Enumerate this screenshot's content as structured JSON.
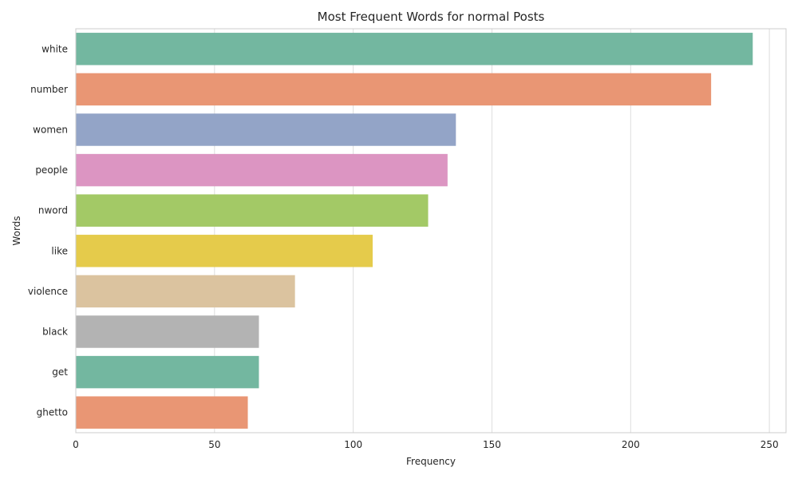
{
  "chart_data": {
    "type": "bar",
    "orientation": "horizontal",
    "title": "Most Frequent Words for normal Posts",
    "xlabel": "Frequency",
    "ylabel": "Words",
    "categories": [
      "white",
      "number",
      "women",
      "people",
      "nword",
      "like",
      "violence",
      "black",
      "get",
      "ghetto"
    ],
    "values": [
      244,
      229,
      137,
      134,
      127,
      107,
      79,
      66,
      66,
      62
    ],
    "xlim": [
      0,
      256
    ],
    "xticks": [
      0,
      50,
      100,
      150,
      200,
      250
    ],
    "grid": true,
    "colors": [
      "#73b7a0",
      "#e99674",
      "#93a4c7",
      "#dc95c2",
      "#a3c966",
      "#e5cb4b",
      "#dbc39f",
      "#b3b3b3",
      "#73b7a0",
      "#e99674"
    ]
  }
}
